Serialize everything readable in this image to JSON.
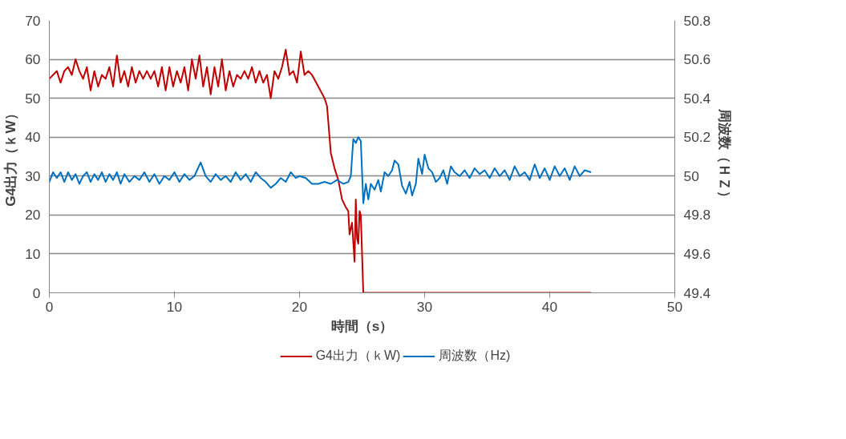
{
  "chart_data": {
    "type": "line",
    "xlabel": "時間（s）",
    "ylabel": "G4出力（ｋW）",
    "y2label": "周波数（ＨＺ）",
    "xlim": [
      0,
      50
    ],
    "xticks": [
      0,
      10,
      20,
      30,
      40,
      50
    ],
    "ylim": [
      0,
      70
    ],
    "yticks": [
      0,
      10,
      20,
      30,
      40,
      50,
      60,
      70
    ],
    "y2lim": [
      49.4,
      50.8
    ],
    "y2ticks": [
      {
        "value": 49.4,
        "label": "49.4"
      },
      {
        "value": 49.6,
        "label": "49.6"
      },
      {
        "value": 49.8,
        "label": "49.8"
      },
      {
        "value": 50,
        "label": "50"
      },
      {
        "value": 50.2,
        "label": "50.2"
      },
      {
        "value": 50.4,
        "label": "50.4"
      },
      {
        "value": 50.6,
        "label": "50.6"
      },
      {
        "value": 50.8,
        "label": "50.8"
      }
    ],
    "grid": "y",
    "legend": "bottom",
    "line_style": "solid",
    "marker": "none",
    "series": [
      {
        "name": "G4出力（ｋW)",
        "color": "#c00000",
        "x": [
          0,
          0.3,
          0.6,
          0.9,
          1.2,
          1.5,
          1.8,
          2.1,
          2.4,
          2.7,
          3,
          3.3,
          3.6,
          3.9,
          4.2,
          4.5,
          4.8,
          5.1,
          5.4,
          5.7,
          6,
          6.3,
          6.6,
          6.9,
          7.2,
          7.5,
          7.8,
          8.1,
          8.4,
          8.7,
          9,
          9.3,
          9.6,
          9.9,
          10.2,
          10.5,
          10.8,
          11.1,
          11.4,
          11.7,
          12,
          12.3,
          12.6,
          12.9,
          13.2,
          13.5,
          13.8,
          14.1,
          14.4,
          14.7,
          15,
          15.3,
          15.6,
          15.9,
          16.2,
          16.5,
          16.8,
          17.1,
          17.4,
          17.7,
          18,
          18.3,
          18.6,
          18.9,
          19.2,
          19.5,
          19.8,
          20.1,
          20.4,
          20.7,
          21,
          21.5,
          22,
          22.2,
          22.5,
          22.8,
          23.1,
          23.4,
          23.7,
          23.9,
          24,
          24.2,
          24.4,
          24.5,
          24.6,
          24.7,
          24.8,
          24.9,
          25.1,
          43.3
        ],
        "values": [
          55,
          56,
          57,
          54,
          57,
          58,
          56,
          60,
          57,
          55,
          58,
          52,
          57,
          53,
          56,
          55,
          58,
          53,
          61,
          54,
          57,
          53,
          58,
          54,
          57,
          55,
          57,
          55,
          57,
          53,
          58,
          52,
          58,
          53,
          57,
          54,
          58,
          52,
          60,
          55,
          61,
          53,
          58,
          51,
          58,
          53,
          60,
          52,
          57,
          53,
          56,
          55,
          57,
          55,
          58,
          54,
          57,
          54,
          56,
          50,
          57,
          55,
          58,
          62.5,
          56,
          57,
          54,
          62,
          56,
          57,
          56,
          53,
          50,
          48,
          36,
          32,
          29,
          24,
          22,
          21,
          15,
          18,
          8,
          24,
          14,
          12.6,
          21,
          20,
          0,
          0
        ]
      },
      {
        "name": "周波数（Hz)",
        "color": "#0070c0",
        "axis": "y2",
        "x": [
          0,
          0.3,
          0.6,
          0.9,
          1.2,
          1.5,
          1.8,
          2.1,
          2.4,
          2.7,
          3,
          3.3,
          3.6,
          3.9,
          4.2,
          4.5,
          4.8,
          5.1,
          5.4,
          5.7,
          6,
          6.4,
          6.8,
          7.2,
          7.6,
          8,
          8.4,
          8.8,
          9.2,
          9.6,
          10,
          10.4,
          10.8,
          11.2,
          11.6,
          12.1,
          12.5,
          12.9,
          13.3,
          13.7,
          14.1,
          14.5,
          14.9,
          15.3,
          15.7,
          16.1,
          16.5,
          16.9,
          17.3,
          17.7,
          18.1,
          18.5,
          18.9,
          19.3,
          19.7,
          20,
          20.5,
          21,
          21.5,
          22,
          22.5,
          23,
          23.5,
          23.9,
          24.1,
          24.3,
          24.5,
          24.7,
          24.9,
          25.1,
          25.3,
          25.5,
          25.7,
          26,
          26.3,
          26.5,
          26.8,
          27.1,
          27.4,
          27.6,
          27.9,
          28.2,
          28.5,
          28.8,
          29,
          29.3,
          29.5,
          29.8,
          30,
          30.3,
          30.6,
          30.9,
          31.2,
          31.5,
          31.8,
          32.1,
          32.4,
          32.8,
          33.2,
          33.6,
          34,
          34.4,
          34.8,
          35.2,
          35.6,
          36,
          36.4,
          36.8,
          37.2,
          37.6,
          38,
          38.4,
          38.8,
          39.2,
          39.6,
          40,
          40.4,
          40.8,
          41.2,
          41.6,
          42,
          42.4,
          42.8,
          43.3
        ],
        "values": [
          49.97,
          50.02,
          49.99,
          50.02,
          49.97,
          50.02,
          49.98,
          50.01,
          49.96,
          50.0,
          50.02,
          49.97,
          50.01,
          49.98,
          50.02,
          49.97,
          50.01,
          49.98,
          50.02,
          49.96,
          50.01,
          49.97,
          50.0,
          49.98,
          50.02,
          49.97,
          50.01,
          49.96,
          50.0,
          49.98,
          50.02,
          49.97,
          50.01,
          49.98,
          50.0,
          50.07,
          50.0,
          49.97,
          50.01,
          49.98,
          50.0,
          49.97,
          50.02,
          49.98,
          50.01,
          49.97,
          50.02,
          49.99,
          49.97,
          49.94,
          49.96,
          49.99,
          49.97,
          50.02,
          49.99,
          50.0,
          49.99,
          49.96,
          49.96,
          49.97,
          49.96,
          49.98,
          49.96,
          49.97,
          50.0,
          50.19,
          50.17,
          50.2,
          50.18,
          49.86,
          49.96,
          49.88,
          49.96,
          49.93,
          49.98,
          49.92,
          50.02,
          50.0,
          50.03,
          50.08,
          50.06,
          49.95,
          49.91,
          49.97,
          49.9,
          49.96,
          50.09,
          50.01,
          50.11,
          50.04,
          50.02,
          49.97,
          49.99,
          50.03,
          49.96,
          50.05,
          50.02,
          50.0,
          50.03,
          49.99,
          50.04,
          50.01,
          50.03,
          49.99,
          50.04,
          50.0,
          50.03,
          49.98,
          50.05,
          50.0,
          50.02,
          49.98,
          50.06,
          49.99,
          50.04,
          49.98,
          50.05,
          50.0,
          50.04,
          49.98,
          50.05,
          50.0,
          50.03,
          50.02
        ]
      }
    ]
  }
}
